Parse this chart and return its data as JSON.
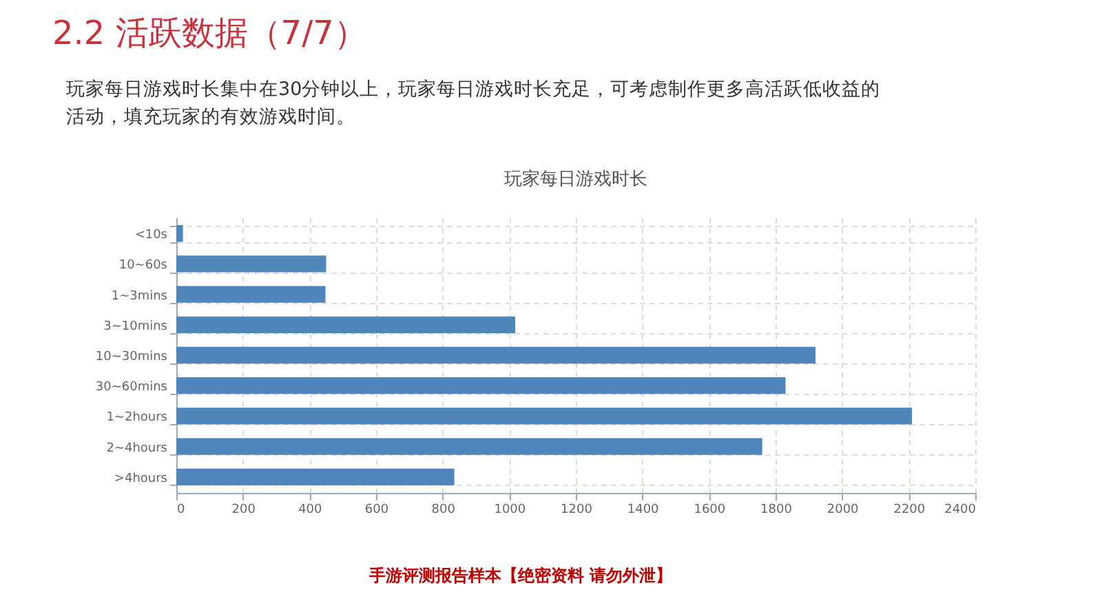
{
  "chart_data": {
    "type": "bar",
    "orientation": "horizontal",
    "title": "玩家每日游戏时长",
    "categories": [
      "<10s",
      "10~60s",
      "1~3mins",
      "3~10mins",
      "10~30mins",
      "30~60mins",
      "1~2hours",
      "2~4hours",
      ">4hours"
    ],
    "values": [
      20,
      450,
      448,
      1018,
      1920,
      1830,
      2210,
      1760,
      835
    ],
    "color": "#4f86bc",
    "xlim": [
      0,
      2400
    ],
    "xticks": [
      0,
      200,
      400,
      600,
      800,
      1000,
      1200,
      1400,
      1600,
      1800,
      2000,
      2200,
      2400
    ],
    "grid": true,
    "annotations": [
      "2.2 活跃数据（7/7）",
      "玩家每日游戏时长集中在30分钟以上，玩家每日游戏时长充足，可考虑制作更多高活跃低收益的活动，填充玩家的有效游戏时间。",
      "手游评测报告样本【绝密资料 请勿外泄】"
    ]
  }
}
